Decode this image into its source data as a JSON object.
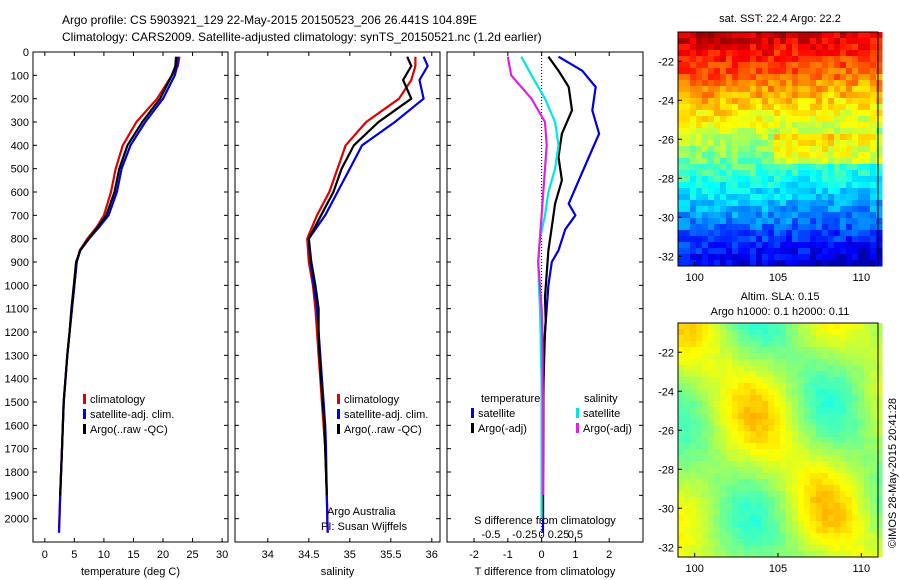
{
  "header": {
    "line1": "Argo profile: CS 5903921_129 22-May-2015 20150523_206 26.441S 104.89E",
    "line2": "Climatology: CARS2009. Satellite-adjusted climatology: synTS_20150521.nc (1.2d earlier)"
  },
  "colors": {
    "climatology": "#e00000",
    "satellite": "#0000e0",
    "argo": "#000000",
    "sal_satellite": "#00e5e5",
    "sal_argo": "#e020e0"
  },
  "credit": {
    "line1": "Argo Australia",
    "line2": "PI: Susan Wijffels"
  },
  "watermark": "©IMOS 28-May-2015 20:41:28",
  "chart_data": [
    {
      "type": "line",
      "id": "temperature",
      "xlabel": "temperature (deg C)",
      "ylabel": "",
      "xlim": [
        -2,
        31
      ],
      "ylim": [
        2100,
        0
      ],
      "xticks": [
        0,
        5,
        10,
        15,
        20,
        25,
        30
      ],
      "yticks": [
        0,
        100,
        200,
        300,
        400,
        500,
        600,
        700,
        800,
        900,
        1000,
        1100,
        1200,
        1300,
        1400,
        1500,
        1600,
        1700,
        1800,
        1900,
        2000
      ],
      "legend": [
        "climatology",
        "satellite-adj. clim.",
        "Argo(..raw -QC)"
      ],
      "series": [
        {
          "name": "climatology",
          "color": "#e00000",
          "x": [
            22.8,
            22.5,
            21.5,
            19,
            15.5,
            13.2,
            12,
            11.2,
            10,
            8.8,
            7.2,
            5.9,
            5.4,
            5.0,
            4.6,
            4.2,
            3.8,
            3.5,
            3.2,
            2.9,
            2.6,
            2.4
          ],
          "y": [
            20,
            60,
            100,
            200,
            300,
            400,
            500,
            600,
            700,
            750,
            800,
            850,
            900,
            1000,
            1100,
            1200,
            1300,
            1400,
            1500,
            1700,
            1900,
            2060
          ]
        },
        {
          "name": "satellite-adj. clim.",
          "color": "#0000e0",
          "x": [
            22.5,
            22.4,
            22,
            20,
            17,
            14.5,
            13,
            12.2,
            10.8,
            9.2,
            7.5,
            6.0,
            5.4,
            5.0,
            4.6,
            4.2,
            3.8,
            3.5,
            3.2,
            2.9,
            2.6,
            2.4
          ],
          "y": [
            20,
            60,
            100,
            200,
            300,
            400,
            500,
            600,
            700,
            750,
            800,
            850,
            900,
            1000,
            1100,
            1200,
            1300,
            1400,
            1500,
            1700,
            1900,
            2060
          ]
        },
        {
          "name": "Argo(..raw -QC)",
          "color": "#000000",
          "x": [
            22.2,
            22.1,
            21.5,
            19.5,
            16.5,
            14,
            12.6,
            11.8,
            10.4,
            9,
            7.4,
            6.0,
            5.3,
            4.9,
            4.5,
            4.2,
            3.8,
            3.5,
            3.2,
            2.9,
            2.6
          ],
          "y": [
            20,
            60,
            100,
            200,
            300,
            400,
            500,
            600,
            700,
            750,
            800,
            850,
            900,
            1000,
            1100,
            1200,
            1300,
            1400,
            1500,
            1700,
            1900
          ]
        }
      ]
    },
    {
      "type": "line",
      "id": "salinity",
      "xlabel": "salinity",
      "ylabel": "",
      "xlim": [
        33.6,
        36.1
      ],
      "ylim": [
        2100,
        0
      ],
      "xticks": [
        34,
        34.5,
        35,
        35.5,
        36
      ],
      "legend": [
        "climatology",
        "satellite-adj. clim.",
        "Argo(..raw -QC)"
      ],
      "series": [
        {
          "name": "climatology",
          "color": "#e00000",
          "x": [
            35.8,
            35.8,
            35.75,
            35.6,
            35.2,
            34.95,
            34.85,
            34.75,
            34.6,
            34.48,
            34.5,
            34.55,
            34.58,
            34.6,
            34.62,
            34.64,
            34.66,
            34.68,
            34.7,
            34.72,
            34.73
          ],
          "y": [
            20,
            60,
            120,
            200,
            300,
            400,
            500,
            600,
            700,
            800,
            900,
            1000,
            1100,
            1200,
            1300,
            1400,
            1500,
            1600,
            1700,
            1900,
            2060
          ]
        },
        {
          "name": "satellite-adj. clim.",
          "color": "#0000e0",
          "x": [
            35.9,
            35.95,
            35.85,
            35.9,
            35.55,
            35.15,
            35,
            34.85,
            34.7,
            34.5,
            34.52,
            34.56,
            34.6,
            34.62,
            34.64,
            34.66,
            34.68,
            34.7,
            34.71,
            34.72,
            34.73
          ],
          "y": [
            20,
            60,
            120,
            200,
            300,
            400,
            500,
            600,
            700,
            800,
            900,
            1000,
            1100,
            1200,
            1300,
            1400,
            1500,
            1600,
            1700,
            1900,
            2060
          ]
        },
        {
          "name": "Argo(..raw -QC)",
          "color": "#000000",
          "x": [
            35.7,
            35.75,
            35.65,
            35.75,
            35.35,
            35.05,
            34.9,
            34.8,
            34.65,
            34.5,
            34.53,
            34.58,
            34.62,
            34.62,
            34.63,
            34.65,
            34.67,
            34.69,
            34.7,
            34.72
          ],
          "y": [
            20,
            60,
            120,
            200,
            300,
            400,
            500,
            600,
            700,
            800,
            900,
            1000,
            1100,
            1200,
            1300,
            1400,
            1500,
            1600,
            1700,
            1900
          ]
        }
      ]
    },
    {
      "type": "line",
      "id": "difference",
      "xlabel": "T difference from climatology",
      "x2label": "S difference from climatology",
      "xlim": [
        -2.8,
        3.0
      ],
      "ylim": [
        2100,
        0
      ],
      "xticks": [
        -2,
        -1,
        0,
        1,
        2
      ],
      "x2ticklabels": [
        "-0.5",
        "-0.25",
        "0",
        "0.25",
        "0.5"
      ],
      "legend_headers": [
        "temperature",
        "salinity"
      ],
      "legend": [
        "satellite",
        "Argo(-adj)",
        "satellite",
        "Argo(-adj)"
      ],
      "series": [
        {
          "name": "satellite",
          "color": "#0000e0",
          "x": [
            0.5,
            1.2,
            1.6,
            1.5,
            1.7,
            1.4,
            1.1,
            0.8,
            1.0,
            0.7,
            0.5,
            0.3,
            0.2,
            0.15,
            0.1,
            0.08,
            0.06,
            0.05,
            0.05,
            0.04,
            0.04
          ],
          "y": [
            20,
            80,
            150,
            250,
            350,
            450,
            550,
            650,
            700,
            760,
            850,
            900,
            1000,
            1100,
            1200,
            1300,
            1400,
            1500,
            1700,
            1900,
            2060
          ]
        },
        {
          "name": "Argo(-adj)",
          "color": "#000000",
          "x": [
            0.2,
            0.5,
            0.8,
            0.9,
            0.6,
            0.5,
            0.6,
            0.4,
            0.3,
            0.2,
            0.15,
            0.1,
            0.12,
            0.08,
            0.06,
            0.05,
            0.05,
            0.04,
            0.04,
            0.04
          ],
          "y": [
            20,
            80,
            150,
            250,
            350,
            450,
            550,
            650,
            750,
            850,
            950,
            1050,
            1150,
            1250,
            1350,
            1450,
            1550,
            1700,
            1850,
            2000
          ]
        },
        {
          "name": "satellite",
          "color": "#00e5e5",
          "x": [
            -0.6,
            -0.3,
            0.1,
            0.4,
            0.5,
            0.4,
            0.2,
            0.1,
            -0.05,
            -0.1,
            -0.08,
            -0.05,
            -0.03,
            -0.02,
            0,
            0,
            0,
            0,
            0,
            0
          ],
          "y": [
            20,
            100,
            200,
            300,
            400,
            500,
            600,
            700,
            800,
            900,
            1000,
            1100,
            1200,
            1300,
            1400,
            1500,
            1600,
            1700,
            1850,
            2000
          ]
        },
        {
          "name": "Argo(-adj)",
          "color": "#e020e0",
          "x": [
            -1.0,
            -0.9,
            -0.3,
            0.1,
            0.15,
            0.1,
            0.05,
            0,
            -0.05,
            -0.1,
            -0.05,
            0,
            0.02,
            0.03,
            0.03,
            0.04,
            0.04,
            0.04,
            0.04
          ],
          "y": [
            20,
            100,
            200,
            300,
            400,
            500,
            600,
            700,
            800,
            900,
            1000,
            1100,
            1200,
            1300,
            1400,
            1500,
            1600,
            1750,
            1900
          ]
        }
      ]
    },
    {
      "type": "heatmap",
      "id": "sst-map",
      "title": "sat. SST: 22.4 Argo: 22.2",
      "xlim": [
        99,
        111
      ],
      "ylim": [
        -32.5,
        -20.5
      ],
      "xticks": [
        100,
        105,
        110
      ],
      "yticks": [
        -22,
        -24,
        -26,
        -28,
        -30,
        -32
      ]
    },
    {
      "type": "heatmap",
      "id": "sla-map",
      "title_line1": "Altim. SLA: 0.15",
      "title_line2": "Argo h1000: 0.1 h2000: 0.11",
      "xlim": [
        99,
        111
      ],
      "ylim": [
        -32.5,
        -20.5
      ],
      "xticks": [
        100,
        105,
        110
      ],
      "yticks": [
        -22,
        -24,
        -26,
        -28,
        -30,
        -32
      ]
    }
  ]
}
